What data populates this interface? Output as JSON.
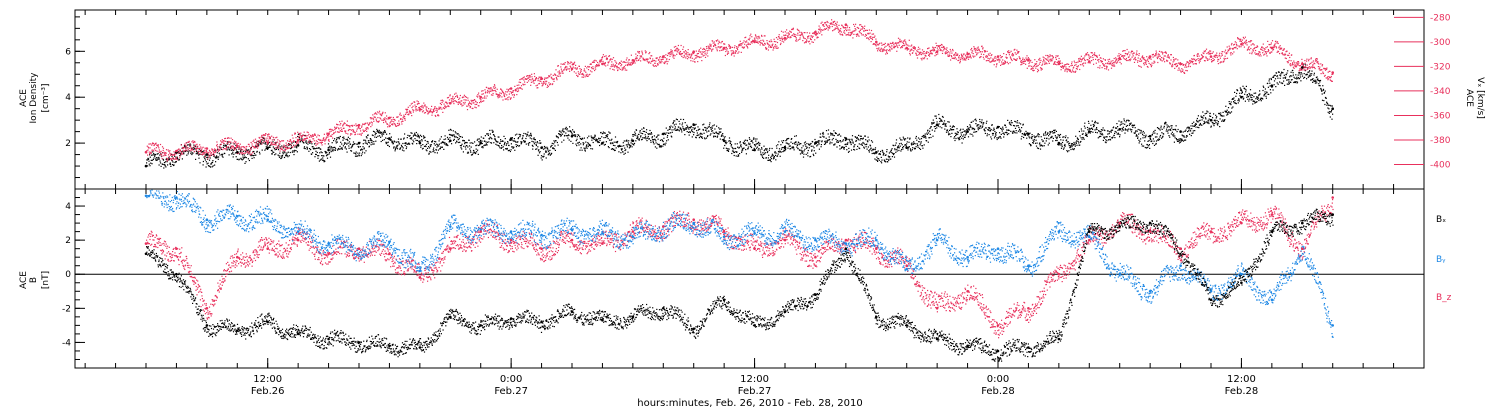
{
  "chart_data": [
    {
      "type": "scatter",
      "panel": "top",
      "left_axis_label": [
        "ACE",
        "Ion Density",
        "[cm⁻³]"
      ],
      "right_axis_label": [
        "ACE",
        "Vₓ [km/s]"
      ],
      "left_ylim": [
        0,
        7.8
      ],
      "right_ylim": [
        -420,
        -274
      ],
      "left_ticks": [
        "2",
        "4",
        "6"
      ],
      "right_ticks": [
        "-280",
        "-300",
        "-320",
        "-340",
        "-360",
        "-380",
        "-400"
      ],
      "series": [
        {
          "key": "density",
          "axis": "left",
          "color": "#000000",
          "x": [
            0,
            3,
            6,
            9,
            12,
            15,
            18,
            21,
            24,
            27,
            30,
            33,
            36,
            39,
            42,
            45,
            48,
            51,
            54,
            57,
            60,
            63,
            66,
            69,
            72,
            75,
            78,
            81,
            84,
            87,
            90,
            93,
            96,
            99,
            102,
            105,
            108,
            111,
            114,
            117
          ],
          "y": [
            1.0,
            1.6,
            1.5,
            1.6,
            1.8,
            1.9,
            1.7,
            2.0,
            2.2,
            2.0,
            2.1,
            2.0,
            2.2,
            1.8,
            2.3,
            2.0,
            2.1,
            2.4,
            2.8,
            2.1,
            1.7,
            1.8,
            2.0,
            2.2,
            1.6,
            1.8,
            2.8,
            2.5,
            2.7,
            2.4,
            2.0,
            2.5,
            2.6,
            2.3,
            2.5,
            3.0,
            4.0,
            4.5,
            5.3,
            3.5
          ]
        },
        {
          "key": "vx",
          "axis": "right",
          "color": "#e8305c",
          "x": [
            0,
            3,
            6,
            9,
            12,
            15,
            18,
            21,
            24,
            27,
            30,
            33,
            36,
            39,
            42,
            45,
            48,
            51,
            54,
            57,
            60,
            63,
            66,
            69,
            72,
            75,
            78,
            81,
            84,
            87,
            90,
            93,
            96,
            99,
            102,
            105,
            108,
            111,
            114,
            117
          ],
          "y": [
            -390,
            -389,
            -387,
            -385,
            -382,
            -380,
            -375,
            -368,
            -362,
            -355,
            -350,
            -345,
            -338,
            -330,
            -322,
            -318,
            -315,
            -312,
            -308,
            -305,
            -300,
            -297,
            -292,
            -286,
            -300,
            -305,
            -308,
            -310,
            -312,
            -315,
            -318,
            -316,
            -314,
            -312,
            -318,
            -312,
            -302,
            -305,
            -318,
            -325
          ]
        }
      ]
    },
    {
      "type": "scatter",
      "panel": "bottom",
      "left_axis_label": [
        "ACE",
        "B",
        "[nT]"
      ],
      "ylim": [
        -5.5,
        5
      ],
      "ticks": [
        "-4",
        "-2",
        "0",
        "2",
        "4"
      ],
      "legend": [
        "Bₓ",
        "Bᵧ",
        "B_z"
      ],
      "series": [
        {
          "key": "bx",
          "color": "#000000",
          "x": [
            0,
            3,
            6,
            9,
            12,
            15,
            18,
            21,
            24,
            27,
            30,
            33,
            36,
            39,
            42,
            45,
            48,
            51,
            54,
            57,
            60,
            63,
            66,
            69,
            72,
            75,
            78,
            81,
            84,
            87,
            90,
            93,
            96,
            99,
            102,
            105,
            108,
            111,
            114,
            117
          ],
          "y": [
            1.2,
            0.0,
            -3.0,
            -3.3,
            -2.8,
            -3.5,
            -3.8,
            -4.0,
            -4.2,
            -4.3,
            -2.5,
            -3.0,
            -2.6,
            -2.8,
            -2.2,
            -2.7,
            -2.5,
            -2.0,
            -3.2,
            -1.5,
            -3.0,
            -2.2,
            -1.2,
            1.5,
            -2.5,
            -3.0,
            -3.8,
            -4.2,
            -4.5,
            -4.3,
            -3.8,
            2.5,
            2.8,
            3.0,
            1.5,
            -1.5,
            -0.5,
            2.5,
            3.0,
            3.5
          ]
        },
        {
          "key": "by",
          "color": "#1e88e5",
          "x": [
            0,
            3,
            6,
            9,
            12,
            15,
            18,
            21,
            24,
            27,
            30,
            33,
            36,
            39,
            42,
            45,
            48,
            51,
            54,
            57,
            60,
            63,
            66,
            69,
            72,
            75,
            78,
            81,
            84,
            87,
            90,
            93,
            96,
            99,
            102,
            105,
            108,
            111,
            114,
            117
          ],
          "y": [
            4.6,
            4.5,
            3.2,
            3.4,
            3.2,
            2.5,
            1.8,
            1.5,
            1.9,
            0.2,
            2.8,
            2.6,
            2.5,
            2.3,
            2.6,
            2.4,
            2.2,
            2.8,
            3.0,
            2.2,
            2.4,
            2.5,
            2.0,
            1.8,
            2.0,
            0.3,
            2.0,
            1.0,
            1.5,
            0.5,
            2.5,
            2.2,
            0.0,
            -1.0,
            0.5,
            -1.0,
            0.0,
            -1.5,
            1.5,
            -3.0
          ]
        },
        {
          "key": "bz",
          "color": "#e8305c",
          "x": [
            0,
            3,
            6,
            9,
            12,
            15,
            18,
            21,
            24,
            27,
            30,
            33,
            36,
            39,
            42,
            45,
            48,
            51,
            54,
            57,
            60,
            63,
            66,
            69,
            72,
            75,
            78,
            81,
            84,
            87,
            90,
            93,
            96,
            99,
            102,
            105,
            108,
            111,
            114,
            117
          ],
          "y": [
            1.8,
            1.5,
            -2.0,
            1.0,
            1.5,
            2.0,
            1.2,
            1.5,
            1.2,
            -0.2,
            1.5,
            2.5,
            2.0,
            1.5,
            2.0,
            1.8,
            2.5,
            2.8,
            3.2,
            2.5,
            1.5,
            2.0,
            1.0,
            2.0,
            1.5,
            0.5,
            -2.0,
            -1.0,
            -3.0,
            -2.0,
            0.0,
            2.0,
            3.0,
            2.5,
            1.5,
            2.5,
            3.0,
            3.5,
            1.5,
            4.5
          ]
        }
      ]
    }
  ],
  "x_axis": {
    "range_hours": [
      -7,
      126
    ],
    "major_ticks": [
      {
        "h": 12,
        "time": "12:00",
        "date": "Feb.26"
      },
      {
        "h": 36,
        "time": "0:00",
        "date": "Feb.27"
      },
      {
        "h": 60,
        "time": "12:00",
        "date": "Feb.27"
      },
      {
        "h": 84,
        "time": "0:00",
        "date": "Feb.28"
      },
      {
        "h": 108,
        "time": "12:00",
        "date": "Feb.28"
      }
    ],
    "title": "hours:minutes, Feb. 26, 2010 - Feb. 28, 2010"
  },
  "legend_labels": {
    "bx": "Bₓ",
    "by": "Bᵧ",
    "bz": "B_z"
  },
  "axis_titles": {
    "top_left_1": "ACE",
    "top_left_2": "Ion Density",
    "top_left_3": "[cm⁻³]",
    "top_right_1": "ACE",
    "top_right_2": "Vₓ [km/s]",
    "bottom_left_1": "ACE",
    "bottom_left_2": "B",
    "bottom_left_3": "[nT]"
  },
  "colors": {
    "black": "#000000",
    "pink": "#e8305c",
    "blue": "#1e88e5"
  }
}
